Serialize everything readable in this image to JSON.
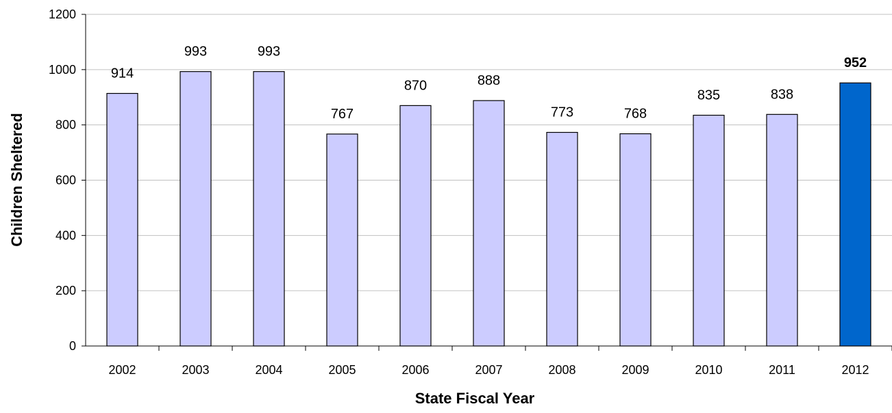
{
  "chart_data": {
    "type": "bar",
    "title": "",
    "xlabel": "State Fiscal Year",
    "ylabel": "Children Sheltered",
    "categories": [
      "2002",
      "2003",
      "2004",
      "2005",
      "2006",
      "2007",
      "2008",
      "2009",
      "2010",
      "2011",
      "2012"
    ],
    "values": [
      914,
      993,
      993,
      767,
      870,
      888,
      773,
      768,
      835,
      838,
      952
    ],
    "highlight_index": 10,
    "ylim": [
      0,
      1200
    ],
    "yticks": [
      0,
      200,
      400,
      600,
      800,
      1000,
      1200
    ],
    "grid": true,
    "legend": "none",
    "colors": {
      "bar": "#CCCCFF",
      "highlight_bar": "#0066CC",
      "bar_outline": "#000000",
      "grid": "#C0C0C0"
    }
  }
}
